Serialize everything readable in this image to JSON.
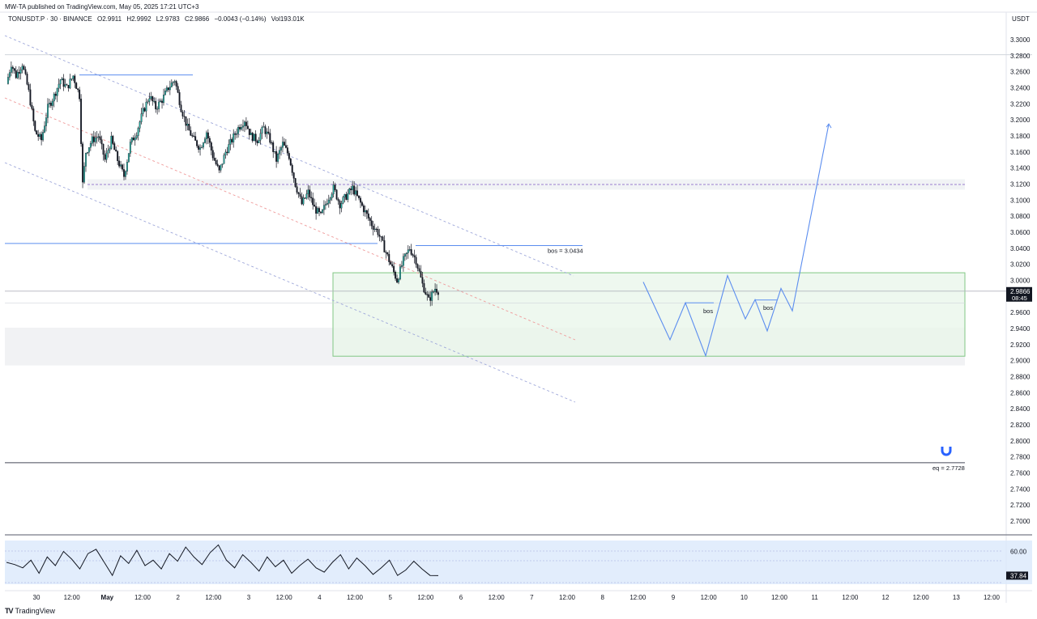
{
  "header": {
    "published": "MW-TA published on TradingView.com, May 05, 2025 17:21 UTC+3",
    "symbol": "TONUSDT.P · 30 · BINANCE",
    "open": "O2.9911",
    "high": "H2.9992",
    "low": "L2.9783",
    "close": "C2.9866",
    "change": "−0.0043 (−0.14%)",
    "volume": "Vol193.01K",
    "currency": "USDT"
  },
  "footer": {
    "brand": "TradingView",
    "logo_text": "TV"
  },
  "colors": {
    "up": "#26a69a",
    "candle": "#131722",
    "drawing": "#5b8def",
    "zone_fill": "#e8f5e9",
    "zone_border": "#81c784",
    "rsi_fill": "#dbe9fb",
    "price_label_bg": "#131722"
  },
  "chart_data": [
    {
      "type": "candlestick",
      "title": "",
      "y_axis_unit": "USDT",
      "ylim": [
        2.68,
        3.31
      ],
      "y_ticks": [
        "3.3000",
        "3.2800",
        "3.2600",
        "3.2400",
        "3.2200",
        "3.2000",
        "3.1800",
        "3.1600",
        "3.1400",
        "3.1200",
        "3.1000",
        "3.0800",
        "3.0600",
        "3.0400",
        "3.0200",
        "3.0000",
        "2.9800",
        "2.9600",
        "2.9400",
        "2.9200",
        "2.9000",
        "2.8800",
        "2.8600",
        "2.8400",
        "2.8200",
        "2.8000",
        "2.7800",
        "2.7600",
        "2.7400",
        "2.7200",
        "2.7000"
      ],
      "x_ticks": [
        "30",
        "12:00",
        "May",
        "12:00",
        "2",
        "12:00",
        "3",
        "12:00",
        "4",
        "12:00",
        "5",
        "12:00",
        "6",
        "12:00",
        "7",
        "12:00",
        "8",
        "12:00",
        "9",
        "12:00",
        "10",
        "12:00",
        "11",
        "12:00",
        "12",
        "12:00",
        "13",
        "12:00"
      ],
      "last_price": "2.9866",
      "countdown": "08:45",
      "price_path": [
        [
          0,
          3.245
        ],
        [
          3,
          3.27
        ],
        [
          6,
          3.255
        ],
        [
          10,
          3.27
        ],
        [
          14,
          3.235
        ],
        [
          18,
          3.185
        ],
        [
          22,
          3.175
        ],
        [
          26,
          3.215
        ],
        [
          30,
          3.23
        ],
        [
          34,
          3.25
        ],
        [
          38,
          3.24
        ],
        [
          42,
          3.255
        ],
        [
          46,
          3.23
        ],
        [
          48,
          3.12
        ],
        [
          50,
          3.16
        ],
        [
          54,
          3.175
        ],
        [
          58,
          3.18
        ],
        [
          62,
          3.15
        ],
        [
          66,
          3.175
        ],
        [
          70,
          3.15
        ],
        [
          74,
          3.13
        ],
        [
          78,
          3.17
        ],
        [
          82,
          3.185
        ],
        [
          86,
          3.21
        ],
        [
          90,
          3.23
        ],
        [
          94,
          3.215
        ],
        [
          98,
          3.225
        ],
        [
          102,
          3.24
        ],
        [
          106,
          3.25
        ],
        [
          110,
          3.215
        ],
        [
          114,
          3.19
        ],
        [
          118,
          3.175
        ],
        [
          122,
          3.165
        ],
        [
          126,
          3.185
        ],
        [
          130,
          3.155
        ],
        [
          134,
          3.135
        ],
        [
          138,
          3.16
        ],
        [
          142,
          3.175
        ],
        [
          146,
          3.19
        ],
        [
          150,
          3.2
        ],
        [
          154,
          3.18
        ],
        [
          158,
          3.175
        ],
        [
          162,
          3.19
        ],
        [
          166,
          3.175
        ],
        [
          170,
          3.15
        ],
        [
          174,
          3.17
        ],
        [
          178,
          3.155
        ],
        [
          182,
          3.12
        ],
        [
          186,
          3.095
        ],
        [
          190,
          3.11
        ],
        [
          194,
          3.09
        ],
        [
          198,
          3.08
        ],
        [
          202,
          3.1
        ],
        [
          206,
          3.115
        ],
        [
          210,
          3.095
        ],
        [
          214,
          3.105
        ],
        [
          218,
          3.115
        ],
        [
          222,
          3.1
        ],
        [
          226,
          3.085
        ],
        [
          230,
          3.07
        ],
        [
          234,
          3.06
        ],
        [
          238,
          3.04
        ],
        [
          242,
          3.02
        ],
        [
          246,
          3.0
        ],
        [
          250,
          3.025
        ],
        [
          254,
          3.04
        ],
        [
          258,
          3.025
        ],
        [
          262,
          2.995
        ],
        [
          266,
          2.975
        ],
        [
          270,
          2.99
        ],
        [
          272,
          2.987
        ]
      ],
      "annotations": [
        {
          "text": "bos = 3.0434",
          "price": 3.0434
        },
        {
          "text": "eq = 2.7728",
          "price": 2.7728
        },
        {
          "text": "bos",
          "price": 2.961
        },
        {
          "text": "bos",
          "price": 2.965
        }
      ],
      "zones": [
        {
          "from_price": 3.0095,
          "to_price": 2.9055,
          "label": ""
        },
        {
          "from_price": 2.941,
          "to_price": 2.894,
          "label": ""
        },
        {
          "from_price": 3.126,
          "to_price": 3.113,
          "label": ""
        }
      ],
      "projection_path": [
        [
          2.998
        ],
        [
          2.926
        ],
        [
          2.972
        ],
        [
          2.906
        ],
        [
          3.006
        ],
        [
          2.952
        ],
        [
          2.976
        ],
        [
          2.937
        ],
        [
          2.99
        ],
        [
          2.962
        ],
        [
          3.195
        ]
      ]
    },
    {
      "type": "line",
      "title": "",
      "name": "RSI",
      "ylim": [
        30,
        70
      ],
      "y_ticks": [
        "60.00"
      ],
      "last_value": "37.84",
      "values": [
        50,
        48,
        45,
        52,
        40,
        55,
        47,
        60,
        53,
        44,
        58,
        62,
        50,
        38,
        56,
        49,
        61,
        47,
        52,
        44,
        58,
        51,
        64,
        55,
        48,
        59,
        66,
        52,
        45,
        57,
        50,
        42,
        55,
        46,
        52,
        40,
        47,
        53,
        45,
        41,
        50,
        57,
        44,
        54,
        47,
        39,
        45,
        52,
        38,
        43,
        51,
        44,
        38,
        37.84
      ]
    }
  ]
}
